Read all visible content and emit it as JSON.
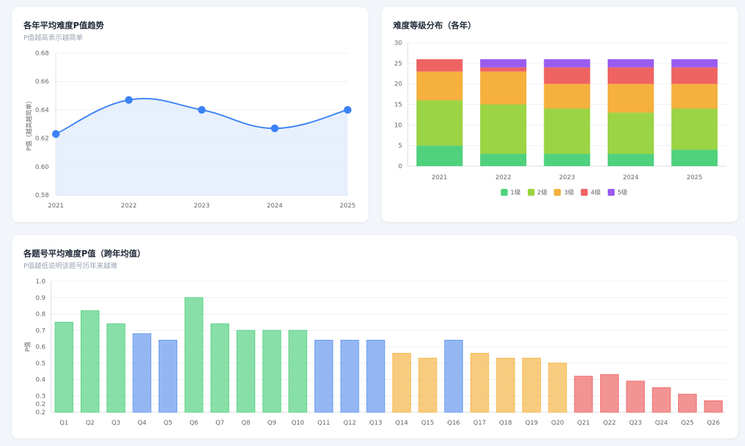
{
  "trend_card": {
    "title": "各年平均难度P值趋势",
    "subtitle": "P值越高表示越简单"
  },
  "dist_card": {
    "title": "难度等级分布（各年）"
  },
  "question_card": {
    "title": "各题号平均难度P值（跨年均值）",
    "subtitle": "P值越低说明该题号历年来越难"
  },
  "chart_data": [
    {
      "type": "line",
      "title": "各年平均难度P值趋势",
      "subtitle": "P值越高表示越简单",
      "x": [
        "2021",
        "2022",
        "2023",
        "2024",
        "2025"
      ],
      "series": [
        {
          "values": [
            0.623,
            0.647,
            0.64,
            0.627,
            0.64
          ]
        }
      ],
      "xlabel": "",
      "ylabel": "P值（越高越简单）",
      "ylim": [
        0.58,
        0.68
      ],
      "yticks": [
        "0.58",
        "0.60",
        "0.62",
        "0.64",
        "0.66",
        "0.68"
      ],
      "smooth": true,
      "area_fill": true,
      "color": "#3b82f6",
      "fill_color": "#e3edfb",
      "grid": true
    },
    {
      "type": "bar",
      "stacked": true,
      "title": "难度等级分布（各年）",
      "categories": [
        "2021",
        "2022",
        "2023",
        "2024",
        "2025"
      ],
      "series": [
        {
          "name": "1级",
          "color": "#4fd17d",
          "values": [
            5,
            3,
            3,
            3,
            4
          ]
        },
        {
          "name": "2级",
          "color": "#9bd444",
          "values": [
            11,
            12,
            11,
            10,
            10
          ]
        },
        {
          "name": "3级",
          "color": "#f5b03d",
          "values": [
            7,
            8,
            6,
            7,
            6
          ]
        },
        {
          "name": "4级",
          "color": "#ef6363",
          "values": [
            3,
            1,
            4,
            4,
            4
          ]
        },
        {
          "name": "5级",
          "color": "#9a5cf0",
          "values": [
            0,
            2,
            2,
            2,
            2
          ]
        }
      ],
      "ylim": [
        0,
        30
      ],
      "yticks": [
        "0",
        "5",
        "10",
        "15",
        "20",
        "25",
        "30"
      ],
      "legend": "bottom",
      "grid": true
    },
    {
      "type": "bar",
      "title": "各题号平均难度P值（跨年均值）",
      "subtitle": "P值越低说明该题号历年来越难",
      "categories": [
        "Q1",
        "Q2",
        "Q3",
        "Q4",
        "Q5",
        "Q6",
        "Q7",
        "Q8",
        "Q9",
        "Q10",
        "Q11",
        "Q12",
        "Q13",
        "Q14",
        "Q15",
        "Q16",
        "Q17",
        "Q18",
        "Q19",
        "Q20",
        "Q21",
        "Q22",
        "Q23",
        "Q24",
        "Q25",
        "Q26"
      ],
      "values": [
        0.75,
        0.82,
        0.74,
        0.68,
        0.64,
        0.9,
        0.74,
        0.7,
        0.7,
        0.7,
        0.64,
        0.64,
        0.64,
        0.56,
        0.53,
        0.64,
        0.56,
        0.53,
        0.53,
        0.5,
        0.42,
        0.43,
        0.39,
        0.35,
        0.31,
        0.27
      ],
      "colors": [
        "#5ad387",
        "#5ad387",
        "#5ad387",
        "#6b9bf0",
        "#6b9bf0",
        "#5ad387",
        "#5ad387",
        "#5ad387",
        "#5ad387",
        "#5ad387",
        "#6b9bf0",
        "#6b9bf0",
        "#6b9bf0",
        "#f5b84e",
        "#f5b84e",
        "#6b9bf0",
        "#f5b84e",
        "#f5b84e",
        "#f5b84e",
        "#f5b84e",
        "#ef6b6b",
        "#ef6b6b",
        "#ef6b6b",
        "#ef6b6b",
        "#ef6b6b",
        "#ef6b6b"
      ],
      "xlabel": "",
      "ylabel": "P值",
      "ylim": [
        0.2,
        1.0
      ],
      "yticks": [
        "0.2",
        "0.2",
        "0.3",
        "0.4",
        "0.5",
        "0.6",
        "0.7",
        "0.8",
        "0.9",
        "1.0"
      ],
      "ytick_values": [
        0.2,
        0.25,
        0.3,
        0.4,
        0.5,
        0.6,
        0.7,
        0.8,
        0.9,
        1.0
      ],
      "grid": true
    }
  ]
}
